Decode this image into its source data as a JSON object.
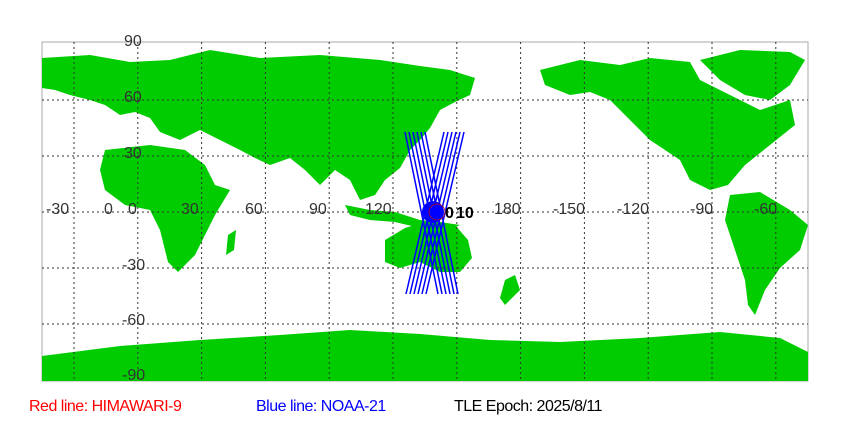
{
  "map": {
    "lat_labels": [
      "90",
      "60",
      "30",
      "0",
      "-30",
      "-60",
      "-90"
    ],
    "lon_labels": [
      "-30",
      "0",
      "30",
      "60",
      "90",
      "120",
      "180",
      "-150",
      "-120",
      "-90",
      "-60"
    ],
    "marker_labels": [
      "0",
      "10"
    ],
    "colors": {
      "land": "#00cc00",
      "ocean": "#ffffff",
      "track": "#0000ff",
      "grid": "#333333",
      "marker": "#0000ff"
    }
  },
  "legend": {
    "red": {
      "text": "Red line: HIMAWARI-9",
      "color": "#ff0000"
    },
    "blue": {
      "text": "Blue line: NOAA-21",
      "color": "#0000ff"
    },
    "epoch": {
      "text": "TLE Epoch: 2025/8/11",
      "color": "#000000"
    }
  }
}
